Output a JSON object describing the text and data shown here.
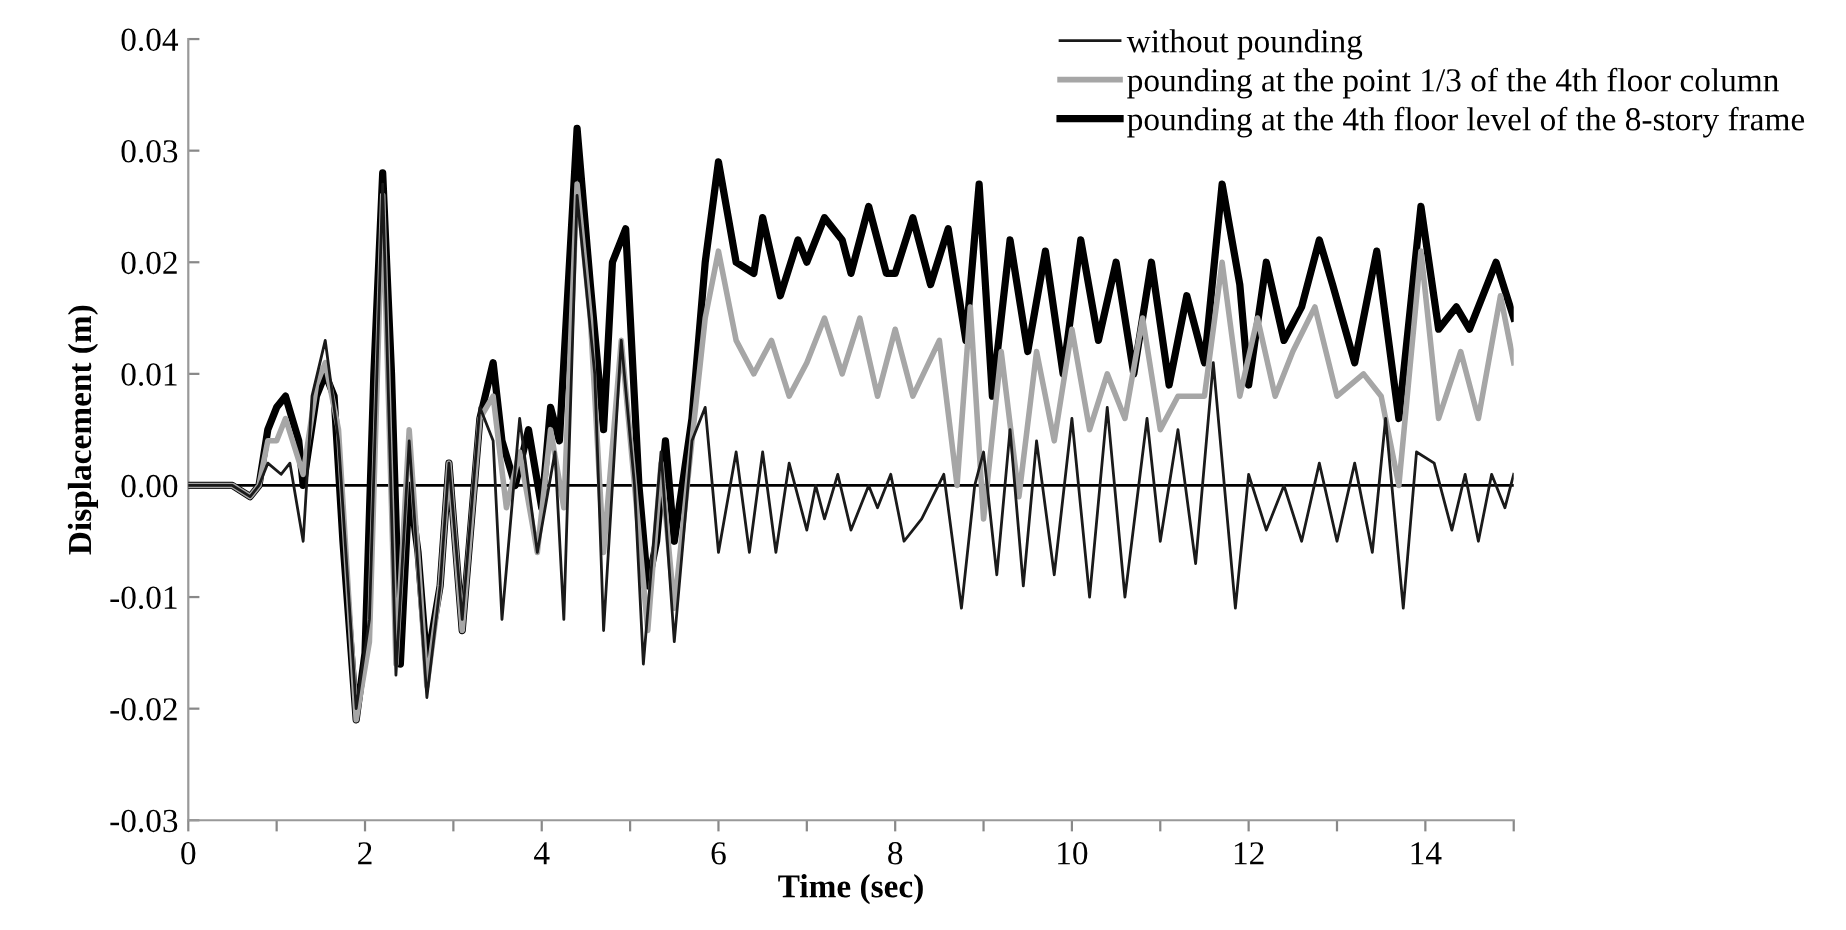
{
  "chart_data": {
    "type": "line",
    "xlabel": "Time (sec)",
    "ylabel": "Displacement (m)",
    "xlim": [
      0,
      15
    ],
    "xticks": [
      0,
      {
        "value": 1,
        "label": null
      },
      2,
      {
        "value": 3,
        "label": null
      },
      4,
      {
        "value": 5,
        "label": null
      },
      6,
      {
        "value": 7,
        "label": null
      },
      8,
      {
        "value": 9,
        "label": null
      },
      10,
      {
        "value": 11,
        "label": null
      },
      12,
      {
        "value": 13,
        "label": null
      },
      14,
      {
        "value": 15,
        "label": null
      }
    ],
    "ylim": [
      -0.03,
      0.04
    ],
    "yticks": [
      {
        "value": -0.03,
        "label": "-0.03"
      },
      {
        "value": -0.02,
        "label": "-0.02"
      },
      {
        "value": -0.01,
        "label": "-0.01"
      },
      {
        "value": 0,
        "label": "0.00"
      },
      {
        "value": 0.01,
        "label": "0.01"
      },
      {
        "value": 0.02,
        "label": "0.02"
      },
      {
        "value": 0.03,
        "label": "0.03"
      },
      {
        "value": 0.04,
        "label": "0.04"
      }
    ],
    "grid": false,
    "legend": "top right",
    "marker": "none",
    "line_style": "solid",
    "ref_lines": [
      {
        "axis": "y",
        "value": 0,
        "label": null,
        "color": "#000000"
      }
    ],
    "series": [
      {
        "name": "without pounding",
        "color": "#1a1a1a",
        "x": [
          0,
          0.5,
          0.7,
          0.8,
          0.9,
          1.05,
          1.15,
          1.3,
          1.4,
          1.55,
          1.7,
          1.9,
          2.05,
          2.2,
          2.35,
          2.5,
          2.7,
          2.85,
          2.95,
          3.1,
          3.3,
          3.45,
          3.55,
          3.75,
          3.95,
          4.15,
          4.25,
          4.4,
          4.6,
          4.7,
          4.9,
          5.05,
          5.15,
          5.35,
          5.5,
          5.7,
          5.85,
          6.0,
          6.2,
          6.35,
          6.5,
          6.65,
          6.8,
          7.0,
          7.1,
          7.2,
          7.35,
          7.5,
          7.7,
          7.8,
          7.95,
          8.1,
          8.3,
          8.55,
          8.75,
          8.9,
          9.0,
          9.15,
          9.3,
          9.45,
          9.6,
          9.8,
          10.0,
          10.2,
          10.4,
          10.6,
          10.85,
          11.0,
          11.2,
          11.4,
          11.6,
          11.85,
          12.0,
          12.2,
          12.4,
          12.6,
          12.8,
          13.0,
          13.2,
          13.4,
          13.55,
          13.75,
          13.9,
          14.1,
          14.3,
          14.45,
          14.6,
          14.75,
          14.9,
          15.0
        ],
        "values": [
          0,
          0,
          -0.001,
          0,
          0.002,
          0.001,
          0.002,
          -0.005,
          0.008,
          0.013,
          0.004,
          -0.02,
          -0.012,
          0.027,
          -0.017,
          0.004,
          -0.019,
          -0.009,
          0.002,
          -0.012,
          0.007,
          0.004,
          -0.012,
          0.006,
          -0.006,
          0.003,
          -0.012,
          0.026,
          0.01,
          -0.013,
          0.013,
          0,
          -0.016,
          0.003,
          -0.014,
          0.004,
          0.007,
          -0.006,
          0.003,
          -0.006,
          0.003,
          -0.006,
          0.002,
          -0.004,
          0,
          -0.003,
          0.001,
          -0.004,
          0,
          -0.002,
          0.001,
          -0.005,
          -0.003,
          0.001,
          -0.011,
          0,
          0.003,
          -0.008,
          0.005,
          -0.009,
          0.004,
          -0.008,
          0.006,
          -0.01,
          0.007,
          -0.01,
          0.006,
          -0.005,
          0.005,
          -0.007,
          0.011,
          -0.011,
          0.001,
          -0.004,
          0,
          -0.005,
          0.002,
          -0.005,
          0.002,
          -0.006,
          0.006,
          -0.011,
          0.003,
          0.002,
          -0.004,
          0.001,
          -0.005,
          0.001,
          -0.002,
          0.001
        ]
      },
      {
        "name": "pounding at the point 1/3 of the 4th floor column",
        "color": "#a6a6a6",
        "x": [
          0,
          0.5,
          0.7,
          0.8,
          0.9,
          1.0,
          1.1,
          1.3,
          1.45,
          1.55,
          1.7,
          1.9,
          2.05,
          2.2,
          2.35,
          2.5,
          2.7,
          2.85,
          2.95,
          3.1,
          3.3,
          3.45,
          3.6,
          3.75,
          3.95,
          4.1,
          4.25,
          4.4,
          4.55,
          4.7,
          4.9,
          5.05,
          5.2,
          5.35,
          5.5,
          5.7,
          5.85,
          6.0,
          6.2,
          6.4,
          6.6,
          6.8,
          7.0,
          7.2,
          7.4,
          7.6,
          7.8,
          8.0,
          8.2,
          8.5,
          8.7,
          8.85,
          9.0,
          9.2,
          9.4,
          9.6,
          9.8,
          10.0,
          10.2,
          10.4,
          10.6,
          10.8,
          11.0,
          11.2,
          11.5,
          11.7,
          11.9,
          12.1,
          12.3,
          12.5,
          12.75,
          13.0,
          13.3,
          13.5,
          13.7,
          13.95,
          14.15,
          14.4,
          14.6,
          14.85,
          15.0
        ],
        "values": [
          0,
          0,
          -0.001,
          0,
          0.004,
          0.004,
          0.006,
          0.001,
          0.009,
          0.011,
          0.005,
          -0.021,
          -0.014,
          0.026,
          -0.016,
          0.005,
          -0.018,
          -0.009,
          0.002,
          -0.013,
          0.006,
          0.008,
          -0.002,
          0.003,
          -0.006,
          0.005,
          -0.002,
          0.027,
          0.015,
          -0.006,
          0.013,
          0.0,
          -0.013,
          0.002,
          -0.011,
          0.004,
          0.015,
          0.021,
          0.013,
          0.01,
          0.013,
          0.008,
          0.011,
          0.015,
          0.01,
          0.015,
          0.008,
          0.014,
          0.008,
          0.013,
          0,
          0.016,
          -0.003,
          0.012,
          -0.001,
          0.012,
          0.004,
          0.014,
          0.005,
          0.01,
          0.006,
          0.015,
          0.005,
          0.008,
          0.008,
          0.02,
          0.008,
          0.015,
          0.008,
          0.012,
          0.016,
          0.008,
          0.01,
          0.008,
          0,
          0.021,
          0.006,
          0.012,
          0.006,
          0.017,
          0.011
        ]
      },
      {
        "name": "pounding at the 4th floor level of the 8-story frame",
        "color": "#000000",
        "x": [
          0,
          0.5,
          0.7,
          0.8,
          0.9,
          1.0,
          1.1,
          1.25,
          1.3,
          1.45,
          1.55,
          1.65,
          1.75,
          1.9,
          2.0,
          2.1,
          2.2,
          2.3,
          2.4,
          2.5,
          2.6,
          2.7,
          2.85,
          2.95,
          3.1,
          3.3,
          3.45,
          3.55,
          3.7,
          3.85,
          4.0,
          4.1,
          4.2,
          4.4,
          4.55,
          4.7,
          4.8,
          4.95,
          5.1,
          5.2,
          5.3,
          5.4,
          5.5,
          5.7,
          5.85,
          6.0,
          6.2,
          6.4,
          6.5,
          6.7,
          6.9,
          7.0,
          7.2,
          7.4,
          7.5,
          7.7,
          7.9,
          8.0,
          8.2,
          8.4,
          8.6,
          8.8,
          8.95,
          9.1,
          9.3,
          9.5,
          9.7,
          9.9,
          10.1,
          10.3,
          10.5,
          10.7,
          10.9,
          11.1,
          11.3,
          11.5,
          11.7,
          11.9,
          12.0,
          12.2,
          12.4,
          12.6,
          12.8,
          12.95,
          13.2,
          13.45,
          13.7,
          13.95,
          14.15,
          14.35,
          14.5,
          14.8,
          15.0
        ],
        "values": [
          0,
          0,
          -0.001,
          0,
          0.005,
          0.007,
          0.008,
          0.004,
          0,
          0.008,
          0.01,
          0.008,
          -0.005,
          -0.021,
          -0.015,
          0.01,
          0.028,
          0.01,
          -0.016,
          0,
          -0.006,
          -0.016,
          -0.009,
          0.002,
          -0.013,
          0.006,
          0.011,
          0.004,
          0,
          0.005,
          -0.002,
          0.007,
          0.004,
          0.032,
          0.018,
          0.005,
          0.02,
          0.023,
          0,
          -0.009,
          -0.005,
          0.004,
          -0.005,
          0.006,
          0.02,
          0.029,
          0.02,
          0.019,
          0.024,
          0.017,
          0.022,
          0.02,
          0.024,
          0.022,
          0.019,
          0.025,
          0.019,
          0.019,
          0.024,
          0.018,
          0.023,
          0.013,
          0.027,
          0.008,
          0.022,
          0.012,
          0.021,
          0.01,
          0.022,
          0.013,
          0.02,
          0.01,
          0.02,
          0.009,
          0.017,
          0.011,
          0.027,
          0.018,
          0.009,
          0.02,
          0.013,
          0.016,
          0.022,
          0.018,
          0.011,
          0.021,
          0.006,
          0.025,
          0.014,
          0.016,
          0.014,
          0.02,
          0.015
        ]
      }
    ]
  }
}
